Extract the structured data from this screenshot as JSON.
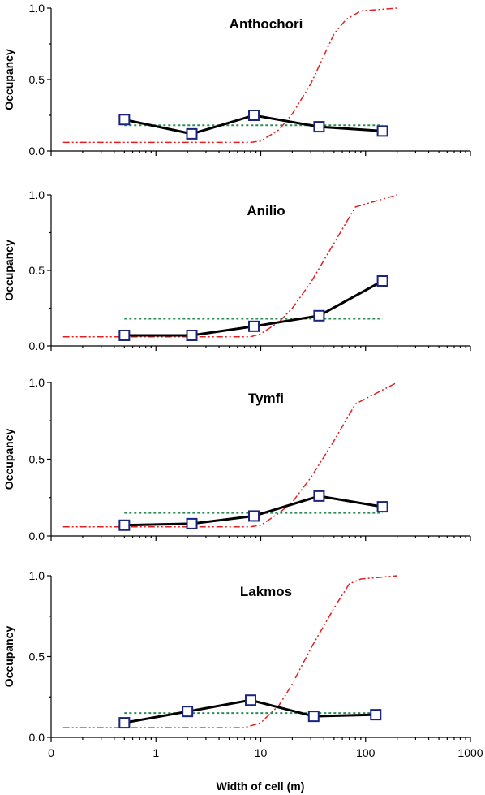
{
  "chart_data": {
    "type": "line",
    "xscale": "log",
    "xlabel": "Width of cell (m)",
    "x_ticks": [
      {
        "value": 0.1,
        "label": "0"
      },
      {
        "value": 1,
        "label": "1"
      },
      {
        "value": 10,
        "label": "10"
      },
      {
        "value": 100,
        "label": "100"
      },
      {
        "value": 1000,
        "label": "1000"
      }
    ],
    "xlim": [
      0.1,
      1000
    ],
    "ylabel": "Occupancy",
    "ylim": [
      0,
      1
    ],
    "y_ticks": [
      {
        "value": 0,
        "label": "0.0"
      },
      {
        "value": 0.5,
        "label": "0.5"
      },
      {
        "value": 1,
        "label": "1.0"
      }
    ],
    "colors": {
      "observed": "#000000",
      "marker": "#1a237e",
      "null": "#2e8b57",
      "model": "#e02020"
    },
    "panels": [
      {
        "title": "Anthochori",
        "series": [
          {
            "kind": "observed",
            "x": [
              0.5,
              2.2,
              8.6,
              36,
              145
            ],
            "y": [
              0.22,
              0.12,
              0.25,
              0.17,
              0.14
            ]
          },
          {
            "kind": "null",
            "x": [
              0.5,
              145
            ],
            "y": [
              0.18,
              0.18
            ]
          },
          {
            "kind": "model",
            "x": [
              0.13,
              8,
              10,
              15,
              20,
              30,
              50,
              65,
              90,
              200
            ],
            "y": [
              0.06,
              0.06,
              0.07,
              0.15,
              0.26,
              0.47,
              0.82,
              0.92,
              0.98,
              1.0
            ]
          }
        ]
      },
      {
        "title": "Anilio",
        "series": [
          {
            "kind": "observed",
            "x": [
              0.5,
              2.2,
              8.6,
              36,
              145
            ],
            "y": [
              0.07,
              0.07,
              0.13,
              0.2,
              0.43
            ]
          },
          {
            "kind": "null",
            "x": [
              0.5,
              145
            ],
            "y": [
              0.18,
              0.18
            ]
          },
          {
            "kind": "model",
            "x": [
              0.13,
              8,
              10,
              15,
              20,
              30,
              50,
              80,
              200
            ],
            "y": [
              0.06,
              0.06,
              0.08,
              0.16,
              0.25,
              0.42,
              0.68,
              0.92,
              1.0
            ]
          }
        ]
      },
      {
        "title": "Tymfi",
        "series": [
          {
            "kind": "observed",
            "x": [
              0.5,
              2.2,
              8.6,
              36,
              145
            ],
            "y": [
              0.07,
              0.08,
              0.13,
              0.26,
              0.19
            ]
          },
          {
            "kind": "null",
            "x": [
              0.5,
              145
            ],
            "y": [
              0.15,
              0.15
            ]
          },
          {
            "kind": "model",
            "x": [
              0.13,
              8,
              10,
              15,
              20,
              30,
              50,
              80,
              200
            ],
            "y": [
              0.06,
              0.06,
              0.07,
              0.15,
              0.22,
              0.38,
              0.62,
              0.86,
              1.0
            ]
          }
        ]
      },
      {
        "title": "Lakmos",
        "series": [
          {
            "kind": "observed",
            "x": [
              0.5,
              2.0,
              8.0,
              32,
              125
            ],
            "y": [
              0.09,
              0.16,
              0.23,
              0.13,
              0.14
            ]
          },
          {
            "kind": "null",
            "x": [
              0.5,
              125
            ],
            "y": [
              0.15,
              0.15
            ]
          },
          {
            "kind": "model",
            "x": [
              0.13,
              7,
              10,
              15,
              20,
              30,
              50,
              70,
              90,
              200
            ],
            "y": [
              0.06,
              0.06,
              0.09,
              0.2,
              0.33,
              0.55,
              0.8,
              0.95,
              0.98,
              1.0
            ]
          }
        ]
      }
    ]
  }
}
